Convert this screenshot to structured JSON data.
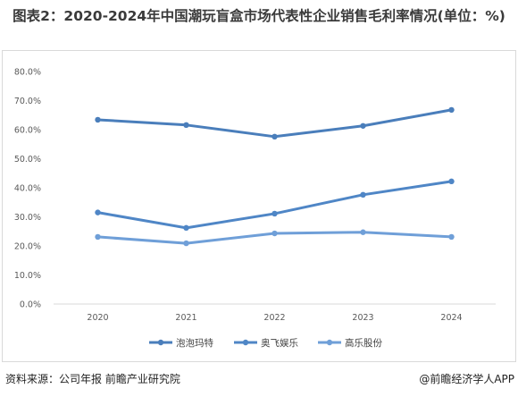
{
  "title": "图表2：2020-2024年中国潮玩盲盒市场代表性企业销售毛利率情况(单位：%)",
  "source": "资料来源：公司年报 前瞻产业研究院",
  "brand": "@前瞻经济学人APP",
  "chart_data": {
    "type": "line",
    "x": [
      "2020",
      "2021",
      "2022",
      "2023",
      "2024"
    ],
    "ylim": [
      0,
      80
    ],
    "y_ticks": [
      "0.0%",
      "10.0%",
      "20.0%",
      "30.0%",
      "40.0%",
      "50.0%",
      "60.0%",
      "70.0%",
      "80.0%"
    ],
    "grid": false,
    "legend_position": "bottom",
    "series": [
      {
        "name": "泡泡玛特",
        "values": [
          63.4,
          61.6,
          57.6,
          61.3,
          66.8
        ],
        "color": "#4a7ebb"
      },
      {
        "name": "奥飞娱乐",
        "values": [
          31.5,
          26.2,
          31.1,
          37.6,
          42.2
        ],
        "color": "#4f86c6"
      },
      {
        "name": "高乐股份",
        "values": [
          23.1,
          20.9,
          24.3,
          24.7,
          23.1
        ],
        "color": "#6f9fd8"
      }
    ]
  }
}
